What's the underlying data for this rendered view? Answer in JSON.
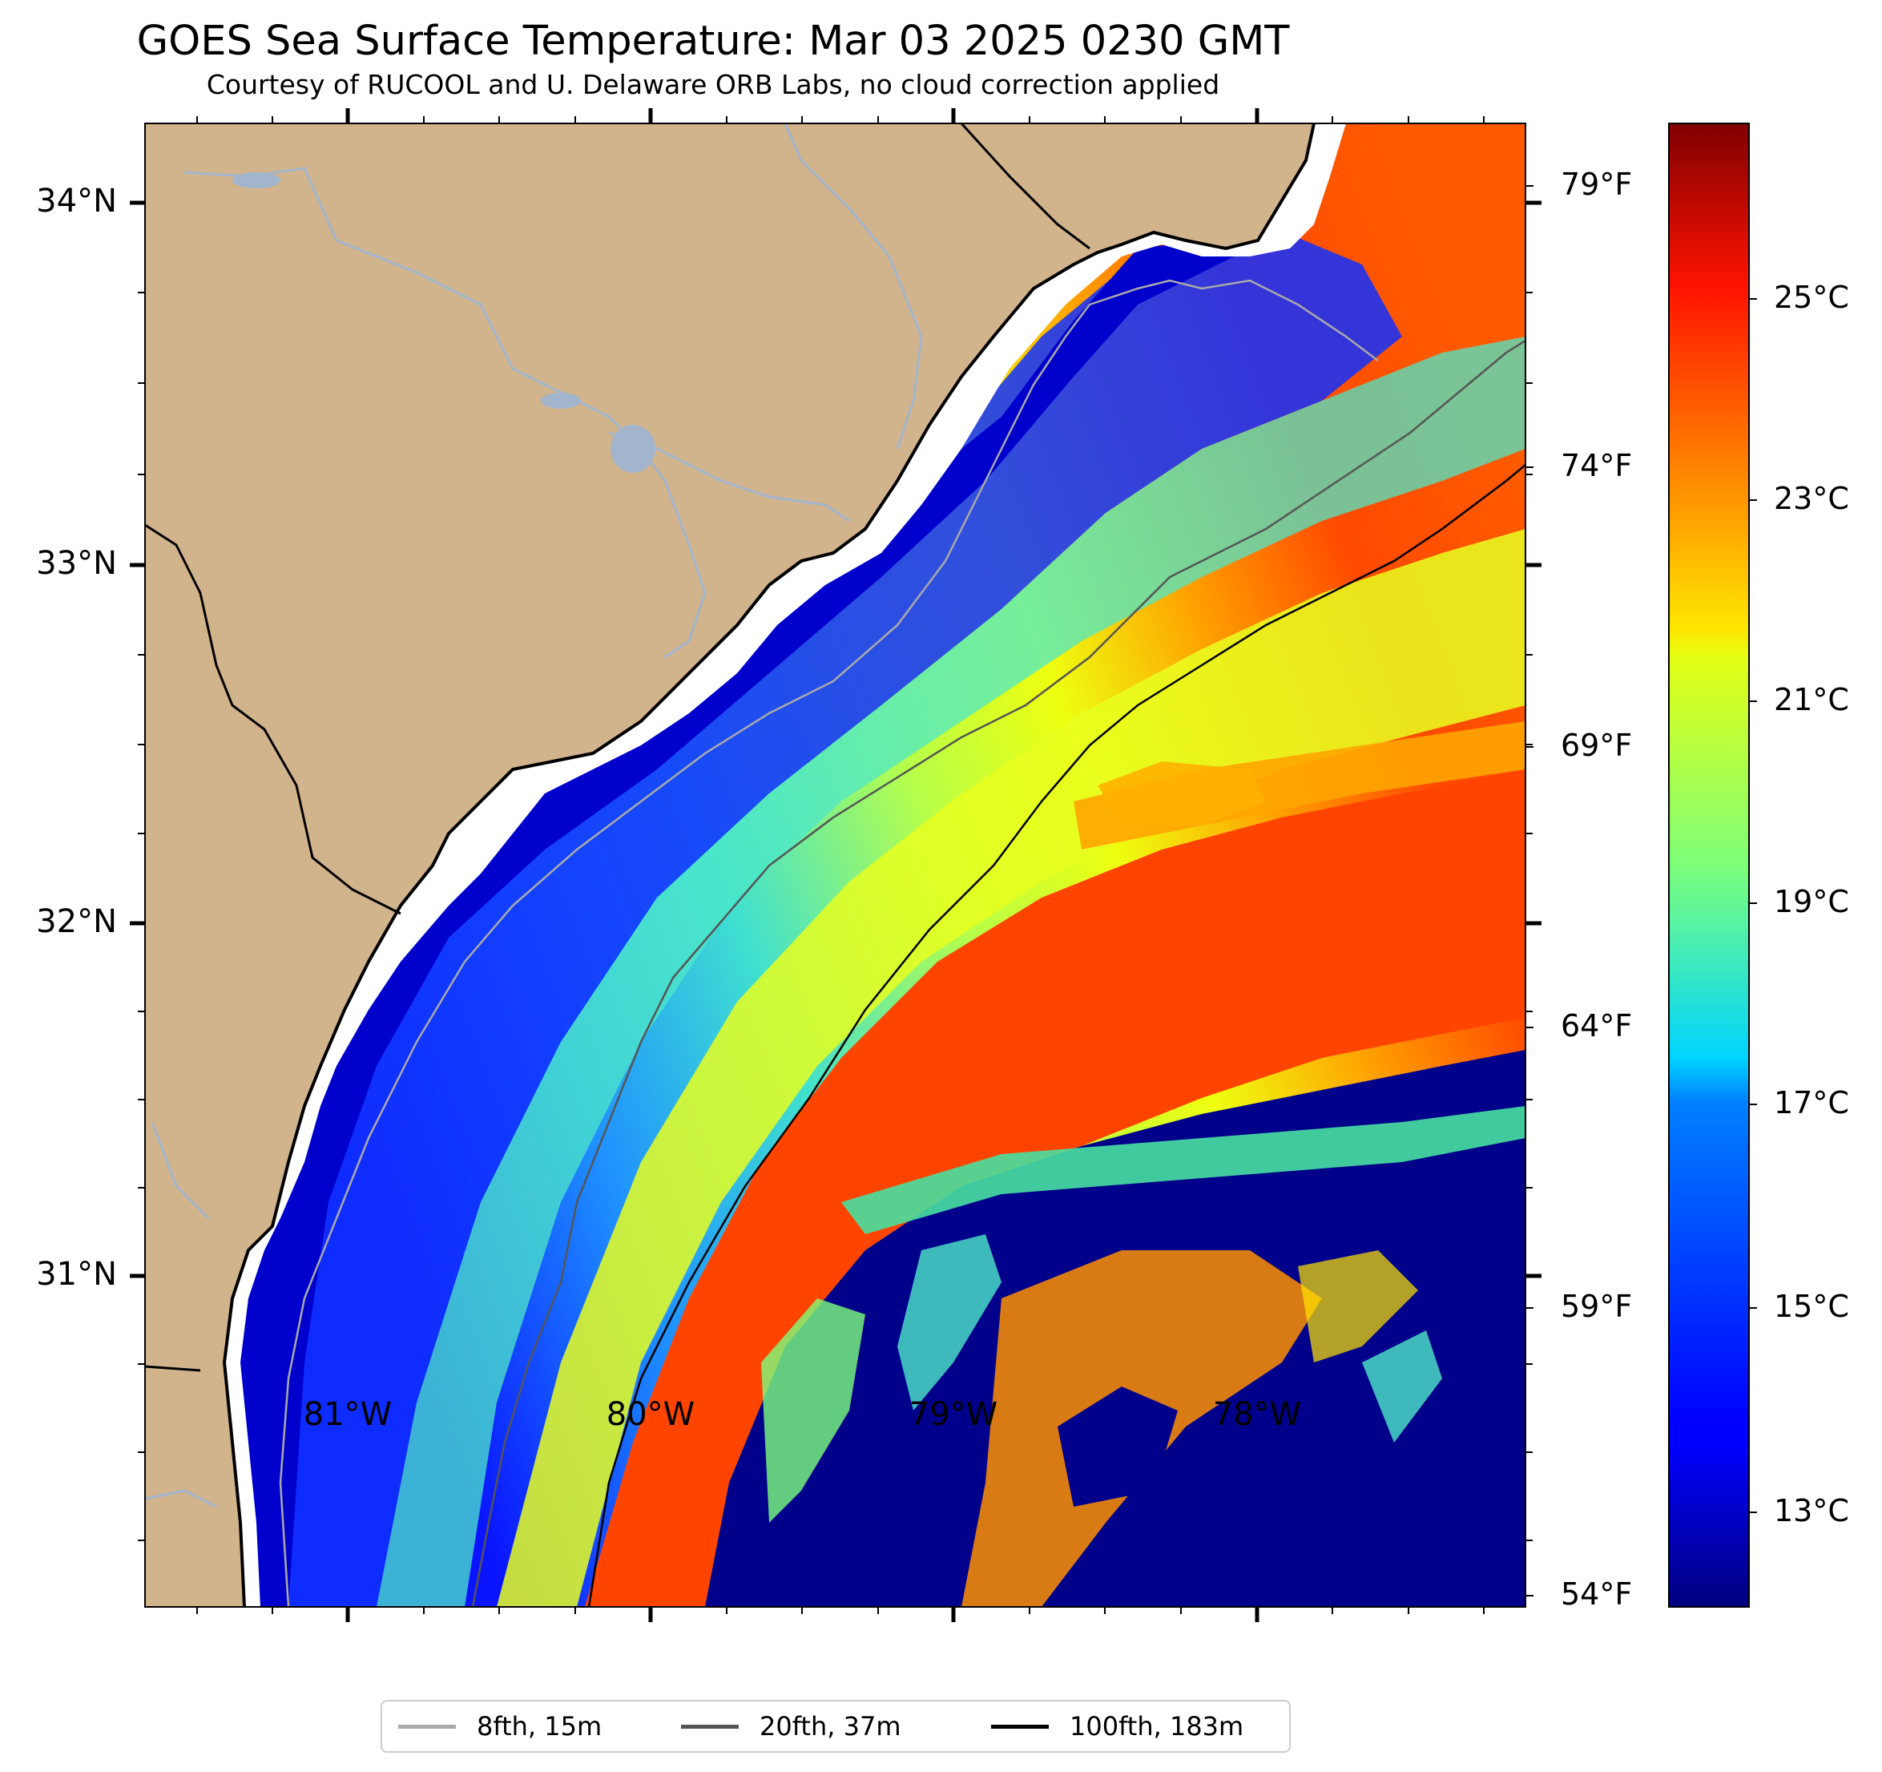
{
  "title": "GOES Sea Surface Temperature: Mar 03 2025 0230 GMT",
  "subtitle": "Courtesy of RUCOOL and U. Delaware ORB Labs, no cloud correction applied",
  "lat_labels": [
    "34°N",
    "33°N",
    "32°N",
    "31°N"
  ],
  "lon_labels": [
    "81°W",
    "80°W",
    "79°W",
    "78°W"
  ],
  "temp_f_labels": [
    "79°F",
    "74°F",
    "69°F",
    "64°F",
    "59°F",
    "54°F"
  ],
  "colorbar": {
    "labels": [
      "25°C",
      "23°C",
      "21°C",
      "19°C",
      "17°C",
      "15°C",
      "13°C"
    ],
    "colormap": "jet",
    "range_c": [
      12,
      27
    ]
  },
  "legend": [
    {
      "label": "8fth, 15m",
      "color": "#aaaaaa"
    },
    {
      "label": "20fth, 37m",
      "color": "#555555"
    },
    {
      "label": "100fth, 183m",
      "color": "#000000"
    }
  ],
  "colors": {
    "land": "#d2b48c",
    "rivers": "#a2b5cd",
    "nodata": "#ffffff",
    "cold": "#00008b",
    "warm": "#ff4000"
  }
}
